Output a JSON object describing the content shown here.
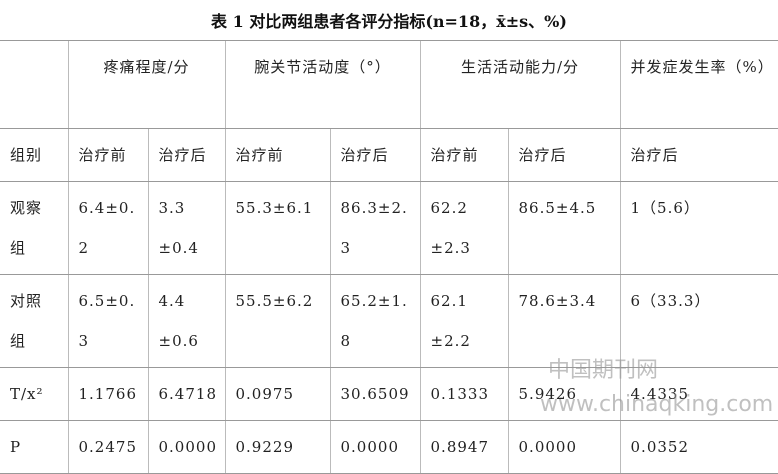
{
  "title": "表 1 对比两组患者各评分指标(n=18，x̄±s、%)",
  "table": {
    "header": [
      "疼痛程度/分",
      "腕关节活动度（°）",
      "生活活动能力/分",
      "并发症发生率（%）"
    ],
    "subheader": [
      "组别",
      "治疗前",
      "治疗后",
      "治疗前",
      "治疗后",
      "治疗前",
      "治疗后",
      "治疗后"
    ],
    "rows": [
      [
        "观察组",
        "6.4±0.2",
        "3.3±0.4",
        "55.3±6.1",
        "86.3±2.3",
        "62.2±2.3",
        "86.5±4.5",
        "1（5.6）"
      ],
      [
        "对照组",
        "6.5±0.3",
        "4.4±0.6",
        "55.5±6.2",
        "65.2±1.8",
        "62.1±2.2",
        "78.6±3.4",
        "6（33.3）"
      ],
      [
        "T/x²",
        "1.1766",
        "6.4718",
        "0.0975",
        "30.6509",
        "0.1333",
        "5.9426",
        "4.4335"
      ],
      [
        "P",
        "0.2475",
        "0.0000",
        "0.9229",
        "0.0000",
        "0.8947",
        "0.0000",
        "0.0352"
      ]
    ]
  },
  "watermark": [
    "中国期刊网",
    "www.chinaqking.com"
  ]
}
